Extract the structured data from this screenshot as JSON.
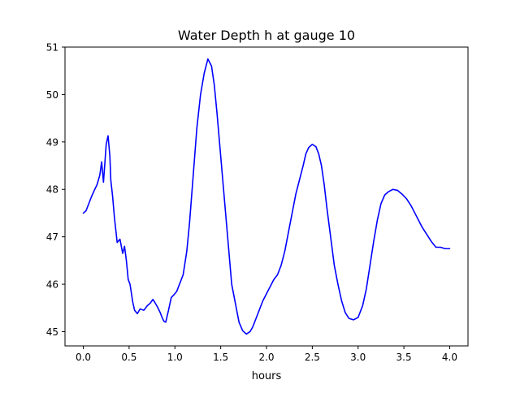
{
  "chart_data": {
    "type": "line",
    "title": "Water Depth h at gauge 10",
    "xlabel": "hours",
    "ylabel": "",
    "xlim": [
      -0.2,
      4.2
    ],
    "ylim": [
      44.7,
      51.0
    ],
    "xticks": [
      0.0,
      0.5,
      1.0,
      1.5,
      2.0,
      2.5,
      3.0,
      3.5,
      4.0
    ],
    "xtick_labels": [
      "0.0",
      "0.5",
      "1.0",
      "1.5",
      "2.0",
      "2.5",
      "3.0",
      "3.5",
      "4.0"
    ],
    "yticks": [
      45,
      46,
      47,
      48,
      49,
      50,
      51
    ],
    "ytick_labels": [
      "45",
      "46",
      "47",
      "48",
      "49",
      "50",
      "51"
    ],
    "grid": false,
    "colors": {
      "line": "#0000ff"
    },
    "series": [
      {
        "x": [
          0.0,
          0.03,
          0.06,
          0.09,
          0.12,
          0.15,
          0.18,
          0.2,
          0.22,
          0.25,
          0.27,
          0.29,
          0.3,
          0.32,
          0.34,
          0.37,
          0.4,
          0.43,
          0.45,
          0.47,
          0.49,
          0.51,
          0.54,
          0.56,
          0.59,
          0.62,
          0.66,
          0.7,
          0.73,
          0.76,
          0.78,
          0.81,
          0.84,
          0.86,
          0.88,
          0.9,
          0.93,
          0.96,
          0.99,
          1.02,
          1.05,
          1.09,
          1.13,
          1.16,
          1.2,
          1.24,
          1.28,
          1.32,
          1.36,
          1.4,
          1.43,
          1.46,
          1.5,
          1.54,
          1.58,
          1.62,
          1.66,
          1.7,
          1.74,
          1.78,
          1.82,
          1.85,
          1.88,
          1.92,
          1.96,
          2.0,
          2.04,
          2.08,
          2.12,
          2.16,
          2.2,
          2.24,
          2.28,
          2.32,
          2.36,
          2.4,
          2.43,
          2.46,
          2.5,
          2.54,
          2.57,
          2.6,
          2.63,
          2.66,
          2.7,
          2.74,
          2.78,
          2.82,
          2.86,
          2.9,
          2.95,
          3.0,
          3.05,
          3.09,
          3.13,
          3.17,
          3.21,
          3.25,
          3.29,
          3.33,
          3.38,
          3.43,
          3.48,
          3.53,
          3.58,
          3.62,
          3.66,
          3.7,
          3.75,
          3.8,
          3.85,
          3.9,
          3.95,
          4.0
        ],
        "y": [
          47.5,
          47.55,
          47.7,
          47.85,
          47.98,
          48.1,
          48.3,
          48.58,
          48.15,
          48.95,
          49.13,
          48.7,
          48.2,
          47.85,
          47.4,
          46.88,
          46.95,
          46.65,
          46.8,
          46.5,
          46.1,
          46.0,
          45.62,
          45.45,
          45.38,
          45.48,
          45.45,
          45.55,
          45.6,
          45.68,
          45.62,
          45.52,
          45.4,
          45.3,
          45.22,
          45.2,
          45.45,
          45.72,
          45.78,
          45.85,
          46.0,
          46.2,
          46.7,
          47.3,
          48.3,
          49.3,
          50.0,
          50.45,
          50.75,
          50.6,
          50.2,
          49.6,
          48.7,
          47.8,
          46.9,
          46.0,
          45.6,
          45.2,
          45.02,
          44.95,
          45.0,
          45.1,
          45.25,
          45.45,
          45.65,
          45.8,
          45.95,
          46.1,
          46.2,
          46.4,
          46.7,
          47.1,
          47.5,
          47.9,
          48.2,
          48.5,
          48.75,
          48.88,
          48.95,
          48.9,
          48.75,
          48.5,
          48.1,
          47.6,
          47.0,
          46.4,
          46.0,
          45.65,
          45.4,
          45.28,
          45.25,
          45.3,
          45.55,
          45.9,
          46.4,
          46.9,
          47.35,
          47.7,
          47.88,
          47.95,
          48.0,
          47.98,
          47.9,
          47.8,
          47.65,
          47.5,
          47.35,
          47.2,
          47.05,
          46.9,
          46.78,
          46.78,
          46.75,
          46.75
        ]
      }
    ]
  }
}
